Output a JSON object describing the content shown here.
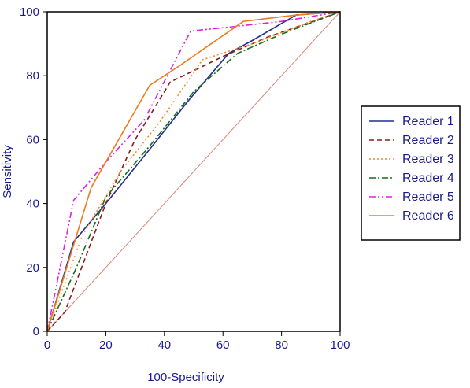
{
  "chart_data": {
    "type": "line",
    "title": "",
    "xlabel": "100-Specificity",
    "ylabel": "Sensitivity",
    "xlim": [
      0,
      100
    ],
    "ylim": [
      0,
      100
    ],
    "xticks": [
      0,
      20,
      40,
      60,
      80,
      100
    ],
    "yticks": [
      0,
      20,
      40,
      60,
      80,
      100
    ],
    "grid": false,
    "legend_position": "right",
    "reference_line": {
      "x": [
        0,
        100
      ],
      "y": [
        0,
        100
      ],
      "color": "#d9857a"
    },
    "series": [
      {
        "name": "Reader 1",
        "color": "#1f2f8f",
        "dash": "",
        "x": [
          0,
          9,
          20,
          35,
          48,
          62,
          70,
          85,
          100
        ],
        "y": [
          0,
          28,
          40,
          57,
          72,
          87,
          91,
          99,
          100
        ]
      },
      {
        "name": "Reader 2",
        "color": "#8b1a1a",
        "dash": "6,4",
        "x": [
          0,
          6,
          20,
          30,
          42,
          60,
          75,
          100
        ],
        "y": [
          0,
          6,
          40,
          60,
          78,
          86,
          92,
          100
        ]
      },
      {
        "name": "Reader 3",
        "color": "#f08c2a",
        "dash": "2,3",
        "x": [
          0,
          12,
          25,
          38,
          53,
          70,
          90,
          100
        ],
        "y": [
          0,
          30,
          50,
          65,
          85,
          90,
          97,
          100
        ]
      },
      {
        "name": "Reader 4",
        "color": "#1a6b1a",
        "dash": "8,3,2,3",
        "x": [
          0,
          10,
          20,
          35,
          50,
          65,
          80,
          100
        ],
        "y": [
          0,
          20,
          42,
          58,
          75,
          87,
          93,
          100
        ]
      },
      {
        "name": "Reader 5",
        "color": "#e020e0",
        "dash": "8,3,2,3,2,3",
        "x": [
          0,
          9,
          20,
          33,
          49,
          60,
          80,
          100
        ],
        "y": [
          0,
          41,
          53,
          66,
          94,
          95,
          97,
          100
        ]
      },
      {
        "name": "Reader 6",
        "color": "#f07a1e",
        "dash": "",
        "x": [
          0,
          15,
          35,
          45,
          67,
          85,
          100
        ],
        "y": [
          0,
          45,
          77,
          83,
          97,
          99,
          100
        ]
      }
    ]
  }
}
